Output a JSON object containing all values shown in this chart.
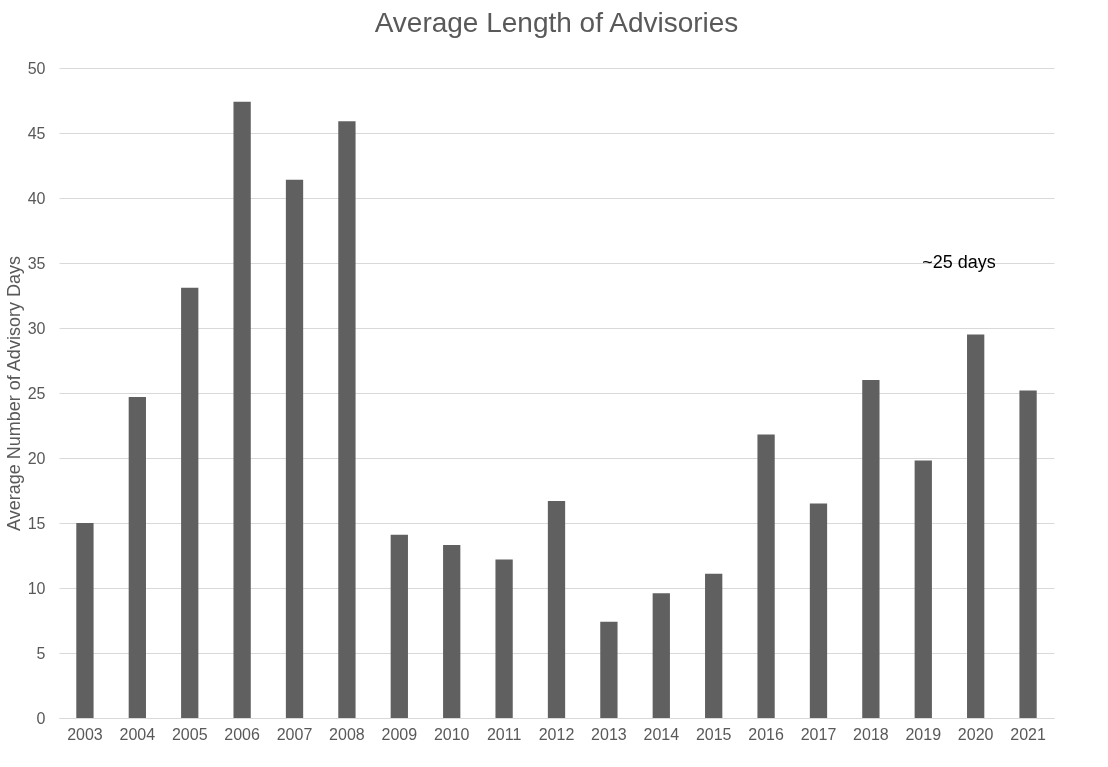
{
  "chart_data": {
    "type": "bar",
    "title": "Average Length of Advisories",
    "ylabel": "Average Number of Advisory Days",
    "categories": [
      "2003",
      "2004",
      "2005",
      "2006",
      "2007",
      "2008",
      "2009",
      "2010",
      "2011",
      "2012",
      "2013",
      "2014",
      "2015",
      "2016",
      "2017",
      "2018",
      "2019",
      "2020",
      "2021"
    ],
    "values": [
      15.0,
      24.7,
      33.1,
      47.4,
      41.4,
      45.9,
      14.1,
      13.3,
      12.2,
      16.7,
      7.4,
      9.6,
      11.1,
      21.8,
      16.5,
      26.0,
      19.8,
      29.5,
      25.2
    ],
    "color": "#606060",
    "ylim": [
      0,
      50
    ],
    "yticks": [
      0,
      5,
      10,
      15,
      20,
      25,
      30,
      35,
      40,
      45,
      50
    ],
    "grid": "y",
    "annotations": [
      "~25 days"
    ]
  }
}
